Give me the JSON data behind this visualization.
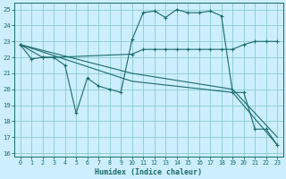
{
  "xlabel": "Humidex (Indice chaleur)",
  "xlim": [
    -0.5,
    23.5
  ],
  "ylim": [
    15.8,
    25.4
  ],
  "xticks": [
    0,
    1,
    2,
    3,
    4,
    5,
    6,
    7,
    8,
    9,
    10,
    11,
    12,
    13,
    14,
    15,
    16,
    17,
    18,
    19,
    20,
    21,
    22,
    23
  ],
  "yticks": [
    16,
    17,
    18,
    19,
    20,
    21,
    22,
    23,
    24,
    25
  ],
  "bg_color": "#cceeff",
  "grid_color": "#88cccc",
  "line_color": "#1a6b6b",
  "line1_x": [
    0,
    1,
    2,
    3,
    4,
    5,
    6,
    7,
    8,
    9,
    10,
    11,
    12,
    13,
    14,
    15,
    16,
    17,
    18,
    19,
    20,
    21,
    22,
    23
  ],
  "line1_y": [
    22.8,
    21.9,
    22.0,
    22.0,
    21.5,
    18.5,
    20.7,
    20.2,
    20.0,
    19.8,
    23.1,
    24.8,
    24.9,
    24.5,
    25.0,
    24.8,
    24.8,
    24.9,
    24.6,
    19.8,
    19.8,
    17.5,
    17.5,
    16.5
  ],
  "line2_x": [
    0,
    2,
    3,
    10,
    11,
    12,
    13,
    14,
    15,
    16,
    17,
    18,
    19,
    20,
    21,
    22,
    23
  ],
  "line2_y": [
    22.8,
    22.0,
    22.0,
    22.2,
    22.5,
    22.5,
    22.5,
    22.5,
    22.5,
    22.5,
    22.5,
    22.5,
    22.5,
    22.8,
    23.0,
    23.0,
    23.0
  ],
  "line3_x": [
    0,
    10,
    19,
    23
  ],
  "line3_y": [
    22.8,
    20.5,
    19.8,
    16.5
  ],
  "line4_x": [
    0,
    10,
    19,
    23
  ],
  "line4_y": [
    22.8,
    21.0,
    20.0,
    17.0
  ],
  "line1_markers": [
    0,
    1,
    2,
    3,
    4,
    5,
    6,
    7,
    8,
    9,
    10,
    11,
    12,
    13,
    14,
    15,
    16,
    17,
    18,
    19,
    20,
    21,
    22,
    23
  ],
  "line2_markers": [
    0,
    2,
    3,
    10,
    11,
    12,
    13,
    14,
    15,
    16,
    17,
    18,
    19,
    20,
    21,
    22,
    23
  ]
}
